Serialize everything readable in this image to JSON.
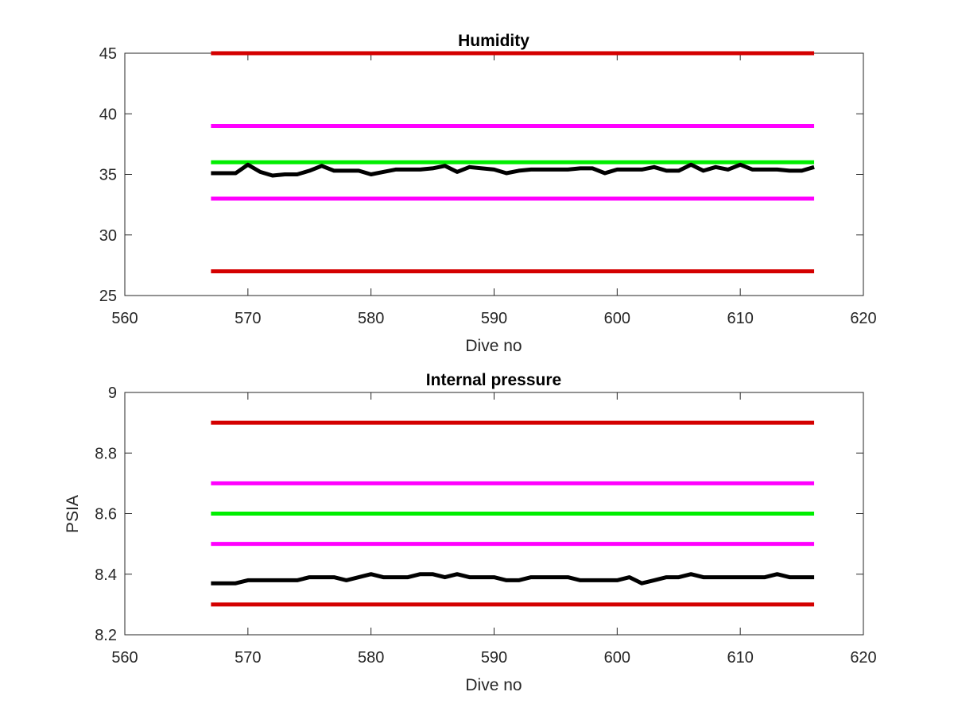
{
  "chart_data": [
    {
      "type": "line",
      "title": "Humidity",
      "xlabel": "Dive no",
      "ylabel": "",
      "xlim": [
        560,
        620
      ],
      "ylim": [
        25,
        45
      ],
      "xticks": [
        560,
        570,
        580,
        590,
        600,
        610,
        620
      ],
      "yticks": [
        25,
        30,
        35,
        40,
        45
      ],
      "grid": false,
      "legend": "none",
      "reference_lines": [
        {
          "y": 45,
          "x": [
            567,
            616
          ],
          "color": "#d40000"
        },
        {
          "y": 39,
          "x": [
            567,
            616
          ],
          "color": "#ff00ff"
        },
        {
          "y": 36,
          "x": [
            567,
            616
          ],
          "color": "#00ee00"
        },
        {
          "y": 33,
          "x": [
            567,
            616
          ],
          "color": "#ff00ff"
        },
        {
          "y": 27,
          "x": [
            567,
            616
          ],
          "color": "#d40000"
        }
      ],
      "series": [
        {
          "color": "#000000",
          "x": [
            567,
            568,
            569,
            570,
            571,
            572,
            573,
            574,
            575,
            576,
            577,
            578,
            579,
            580,
            581,
            582,
            583,
            584,
            585,
            586,
            587,
            588,
            589,
            590,
            591,
            592,
            593,
            594,
            595,
            596,
            597,
            598,
            599,
            600,
            601,
            602,
            603,
            604,
            605,
            606,
            607,
            608,
            609,
            610,
            611,
            612,
            613,
            614,
            615,
            616
          ],
          "values": [
            35.1,
            35.1,
            35.1,
            35.8,
            35.2,
            34.9,
            35.0,
            35.0,
            35.3,
            35.7,
            35.3,
            35.3,
            35.3,
            35.0,
            35.2,
            35.4,
            35.4,
            35.4,
            35.5,
            35.7,
            35.2,
            35.6,
            35.5,
            35.4,
            35.1,
            35.3,
            35.4,
            35.4,
            35.4,
            35.4,
            35.5,
            35.5,
            35.1,
            35.4,
            35.4,
            35.4,
            35.6,
            35.3,
            35.3,
            35.8,
            35.3,
            35.6,
            35.4,
            35.8,
            35.4,
            35.4,
            35.4,
            35.3,
            35.3,
            35.6
          ]
        }
      ]
    },
    {
      "type": "line",
      "title": "Internal pressure",
      "xlabel": "Dive no",
      "ylabel": "PSIA",
      "xlim": [
        560,
        620
      ],
      "ylim": [
        8.2,
        9
      ],
      "xticks": [
        560,
        570,
        580,
        590,
        600,
        610,
        620
      ],
      "yticks": [
        8.2,
        8.4,
        8.6,
        8.8,
        9
      ],
      "grid": false,
      "legend": "none",
      "reference_lines": [
        {
          "y": 8.9,
          "x": [
            567,
            616
          ],
          "color": "#d40000"
        },
        {
          "y": 8.7,
          "x": [
            567,
            616
          ],
          "color": "#ff00ff"
        },
        {
          "y": 8.6,
          "x": [
            567,
            616
          ],
          "color": "#00ee00"
        },
        {
          "y": 8.5,
          "x": [
            567,
            616
          ],
          "color": "#ff00ff"
        },
        {
          "y": 8.3,
          "x": [
            567,
            616
          ],
          "color": "#d40000"
        }
      ],
      "series": [
        {
          "color": "#000000",
          "x": [
            567,
            568,
            569,
            570,
            571,
            572,
            573,
            574,
            575,
            576,
            577,
            578,
            579,
            580,
            581,
            582,
            583,
            584,
            585,
            586,
            587,
            588,
            589,
            590,
            591,
            592,
            593,
            594,
            595,
            596,
            597,
            598,
            599,
            600,
            601,
            602,
            603,
            604,
            605,
            606,
            607,
            608,
            609,
            610,
            611,
            612,
            613,
            614,
            615,
            616
          ],
          "values": [
            8.37,
            8.37,
            8.37,
            8.38,
            8.38,
            8.38,
            8.38,
            8.38,
            8.39,
            8.39,
            8.39,
            8.38,
            8.39,
            8.4,
            8.39,
            8.39,
            8.39,
            8.4,
            8.4,
            8.39,
            8.4,
            8.39,
            8.39,
            8.39,
            8.38,
            8.38,
            8.39,
            8.39,
            8.39,
            8.39,
            8.38,
            8.38,
            8.38,
            8.38,
            8.39,
            8.37,
            8.38,
            8.39,
            8.39,
            8.4,
            8.39,
            8.39,
            8.39,
            8.39,
            8.39,
            8.39,
            8.4,
            8.39,
            8.39,
            8.39
          ]
        }
      ]
    }
  ]
}
